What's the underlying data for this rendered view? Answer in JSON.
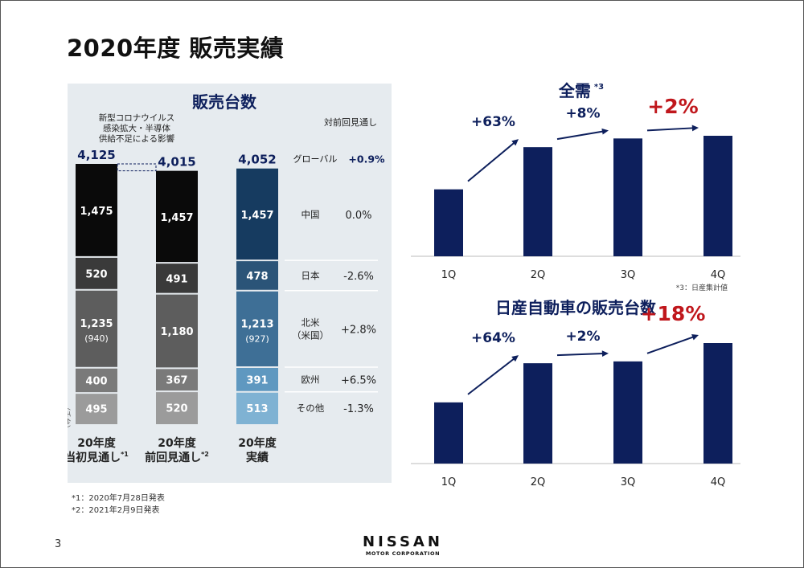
{
  "page": {
    "title": "2020年度 販売実績",
    "number": "3",
    "footnotes": [
      "*1：2020年7月28日発表",
      "*2：2021年2月9日発表"
    ]
  },
  "logo": {
    "wordmark": "NISSAN",
    "sub": "MOTOR CORPORATION"
  },
  "colors": {
    "navy": "#0d1f5c",
    "red": "#c0171c",
    "panel_bg": "#e6ebef"
  },
  "chart_data": [
    {
      "type": "bar",
      "stacked": true,
      "title": "販売台数",
      "ylabel": "（千台）",
      "impact_note": [
        "新型コロナウイルス",
        "感染拡大・半導体",
        "供給不足による影響"
      ],
      "comparison_header": "対前回見通し",
      "categories": [
        {
          "lines": [
            "20年度",
            "当初見通し"
          ],
          "sup": "*1",
          "total": "4,125"
        },
        {
          "lines": [
            "20年度",
            "前回見通し"
          ],
          "sup": "*2",
          "total": "4,015"
        },
        {
          "lines": [
            "20年度",
            "実績"
          ],
          "sup": "",
          "total": "4,052"
        }
      ],
      "series": [
        {
          "name": "その他",
          "values": [
            495,
            520,
            513
          ],
          "labels": [
            "495",
            "520",
            "513"
          ],
          "change": "-1.3%",
          "colors": [
            "#9b9b9b",
            "#9b9b9b",
            "#7fb2d3"
          ]
        },
        {
          "name": "欧州",
          "values": [
            400,
            367,
            391
          ],
          "labels": [
            "400",
            "367",
            "391"
          ],
          "change": "+6.5%",
          "colors": [
            "#7a7a7a",
            "#7a7a7a",
            "#5f98c0"
          ]
        },
        {
          "name": [
            "北米",
            "（米国）"
          ],
          "values": [
            1235,
            1180,
            1213
          ],
          "labels": [
            "1,235",
            "1,180",
            "1,213"
          ],
          "sublabels": [
            "(940)",
            "",
            "(927)"
          ],
          "change": "+2.8%",
          "colors": [
            "#5d5d5d",
            "#5d5d5d",
            "#3e6f96"
          ]
        },
        {
          "name": "日本",
          "values": [
            520,
            491,
            478
          ],
          "labels": [
            "520",
            "491",
            "478"
          ],
          "change": "-2.6%",
          "colors": [
            "#3a3a3a",
            "#3a3a3a",
            "#2b5478"
          ]
        },
        {
          "name": "中国",
          "values": [
            1475,
            1457,
            1457
          ],
          "labels": [
            "1,475",
            "1,457",
            "1,457"
          ],
          "change": "0.0%",
          "colors": [
            "#0a0a0a",
            "#0a0a0a",
            "#163b60"
          ]
        }
      ],
      "global": {
        "name": "グローバル",
        "change": "+0.9%"
      }
    },
    {
      "type": "bar",
      "title": "全需",
      "title_sup": "*3",
      "categories": [
        "1Q",
        "2Q",
        "3Q",
        "4Q"
      ],
      "values": [
        100,
        163,
        176,
        180
      ],
      "changes": [
        "+63%",
        "+8%",
        "+2%"
      ],
      "highlight_last": true,
      "note": "*3：日産集計値"
    },
    {
      "type": "bar",
      "title": "日産自動車の販売台数",
      "categories": [
        "1Q",
        "2Q",
        "3Q",
        "4Q"
      ],
      "values": [
        100,
        164,
        167,
        197
      ],
      "changes": [
        "+64%",
        "+2%",
        "+18%"
      ],
      "highlight_last": true
    }
  ]
}
